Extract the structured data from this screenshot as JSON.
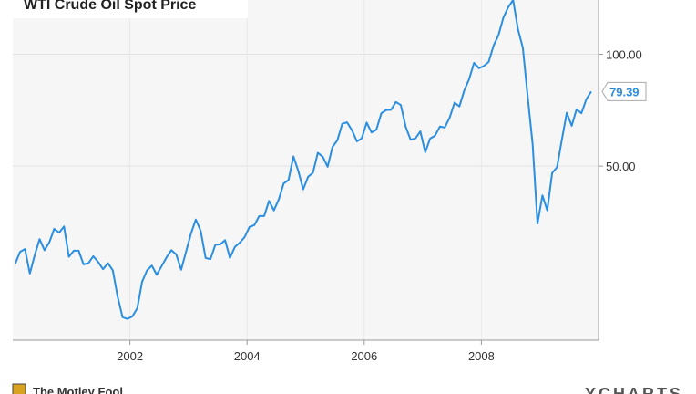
{
  "chart_data": {
    "type": "line",
    "title": "WTI Crude Oil Spot Price",
    "source": "The Motley Fool",
    "brand": "YCHARTS",
    "log_scale": true,
    "grid": true,
    "xlim": [
      2000,
      2010
    ],
    "xticks": [
      2002,
      2004,
      2006,
      2008
    ],
    "ylim": [
      17,
      140
    ],
    "yticks": [
      {
        "value": 50,
        "label": "50.00"
      },
      {
        "value": 100,
        "label": "100.00"
      }
    ],
    "current_value": 79.39,
    "series": [
      {
        "name": "WTI Crude Oil Spot Price",
        "color": "#2b8ee0",
        "x": [
          2000.042,
          2000.125,
          2000.208,
          2000.292,
          2000.375,
          2000.458,
          2000.542,
          2000.625,
          2000.708,
          2000.792,
          2000.875,
          2000.958,
          2001.042,
          2001.125,
          2001.208,
          2001.292,
          2001.375,
          2001.458,
          2001.542,
          2001.625,
          2001.708,
          2001.792,
          2001.875,
          2001.958,
          2002.042,
          2002.125,
          2002.208,
          2002.292,
          2002.375,
          2002.458,
          2002.542,
          2002.625,
          2002.708,
          2002.792,
          2002.875,
          2002.958,
          2003.042,
          2003.125,
          2003.208,
          2003.292,
          2003.375,
          2003.458,
          2003.542,
          2003.625,
          2003.708,
          2003.792,
          2003.875,
          2003.958,
          2004.042,
          2004.125,
          2004.208,
          2004.292,
          2004.375,
          2004.458,
          2004.542,
          2004.625,
          2004.708,
          2004.792,
          2004.875,
          2004.958,
          2005.042,
          2005.125,
          2005.208,
          2005.292,
          2005.375,
          2005.458,
          2005.542,
          2005.625,
          2005.708,
          2005.792,
          2005.875,
          2005.958,
          2006.042,
          2006.125,
          2006.208,
          2006.292,
          2006.375,
          2006.458,
          2006.542,
          2006.625,
          2006.708,
          2006.792,
          2006.875,
          2006.958,
          2007.042,
          2007.125,
          2007.208,
          2007.292,
          2007.375,
          2007.458,
          2007.542,
          2007.625,
          2007.708,
          2007.792,
          2007.875,
          2007.958,
          2008.042,
          2008.125,
          2008.208,
          2008.292,
          2008.375,
          2008.458,
          2008.542,
          2008.625,
          2008.708,
          2008.792,
          2008.875,
          2008.958,
          2009.042,
          2009.125,
          2009.208,
          2009.292,
          2009.375,
          2009.458,
          2009.542,
          2009.625,
          2009.708,
          2009.792,
          2009.875
        ],
        "values": [
          27.3,
          29.4,
          29.9,
          25.7,
          28.8,
          31.8,
          29.7,
          31.2,
          33.9,
          33.1,
          34.4,
          28.5,
          29.6,
          29.6,
          27.2,
          27.4,
          28.6,
          27.6,
          26.4,
          27.4,
          26.2,
          22.2,
          19.6,
          19.4,
          19.7,
          20.7,
          24.4,
          26.2,
          27.0,
          25.5,
          26.9,
          28.4,
          29.7,
          28.9,
          26.3,
          29.4,
          32.9,
          35.9,
          33.5,
          28.3,
          28.1,
          30.7,
          30.8,
          31.6,
          28.3,
          30.3,
          31.1,
          32.2,
          34.3,
          34.7,
          36.7,
          36.7,
          40.3,
          38.0,
          40.7,
          44.9,
          45.9,
          53.1,
          48.5,
          43.3,
          46.8,
          48.0,
          54.3,
          53.0,
          49.8,
          56.3,
          58.7,
          65.0,
          65.6,
          62.4,
          58.3,
          59.4,
          65.5,
          61.6,
          62.7,
          69.4,
          70.8,
          70.9,
          74.4,
          73.0,
          63.8,
          58.9,
          59.4,
          62.0,
          54.5,
          59.3,
          60.4,
          63.9,
          63.5,
          67.5,
          74.1,
          72.4,
          79.9,
          85.8,
          94.8,
          91.7,
          93.0,
          95.4,
          105.5,
          112.6,
          125.4,
          133.9,
          140.0,
          116.7,
          104.1,
          76.6,
          57.3,
          35.0,
          41.7,
          38.0,
          47.9,
          49.7,
          59.0,
          69.6,
          64.2,
          71.1,
          69.4,
          75.7,
          79.39
        ]
      }
    ]
  }
}
